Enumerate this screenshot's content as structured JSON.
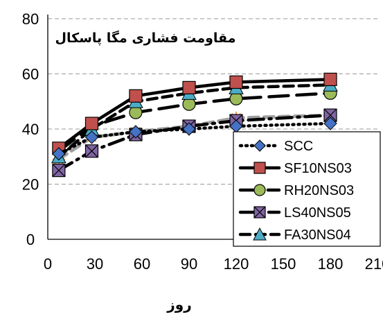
{
  "chart_data": {
    "type": "line",
    "annotation": "مقاومت فشاری مگا پاسکال",
    "xlabel": "روز",
    "ylabel": "",
    "xlim": [
      0,
      210
    ],
    "ylim": [
      0,
      80
    ],
    "xticks": [
      0,
      30,
      60,
      90,
      120,
      150,
      180,
      210
    ],
    "yticks": [
      0,
      20,
      40,
      60,
      80
    ],
    "grid": "horizontal dashed",
    "legend_position": "bottom-right",
    "series": [
      {
        "name": "SCC",
        "x": [
          7,
          28,
          56,
          90,
          120,
          180
        ],
        "y": [
          31,
          37,
          39,
          40,
          41,
          42
        ],
        "marker": "diamond",
        "line": "dotted",
        "color": "#4472C4"
      },
      {
        "name": "SF10NS03",
        "x": [
          7,
          28,
          56,
          90,
          120,
          180
        ],
        "y": [
          33,
          42,
          52,
          55,
          57,
          58
        ],
        "marker": "square",
        "line": "solid",
        "color": "#C0504D"
      },
      {
        "name": "RH20NS03",
        "x": [
          7,
          28,
          56,
          90,
          120,
          180
        ],
        "y": [
          32,
          41,
          46,
          49,
          51,
          53
        ],
        "marker": "circle",
        "line": "long-dash",
        "color": "#9BBB59"
      },
      {
        "name": "LS40NS05",
        "x": [
          7,
          28,
          56,
          90,
          120,
          180
        ],
        "y": [
          25,
          32,
          38,
          41,
          43,
          45
        ],
        "marker": "x-square",
        "line": "dash-dot",
        "color": "#8064A2"
      },
      {
        "name": "FA30NS04",
        "x": [
          7,
          28,
          56,
          90,
          120,
          180
        ],
        "y": [
          30,
          40,
          50,
          53,
          55,
          56
        ],
        "marker": "triangle",
        "line": "dashed",
        "color": "#4BACC6"
      }
    ],
    "extra_series": [
      {
        "x": [
          7,
          28,
          56,
          90,
          120,
          180
        ],
        "y": [
          29,
          37,
          39,
          41,
          44,
          45
        ],
        "marker": "asterisk",
        "line": "dashed",
        "color": "#A0A0A0",
        "marker_color": "#F79646"
      }
    ]
  }
}
